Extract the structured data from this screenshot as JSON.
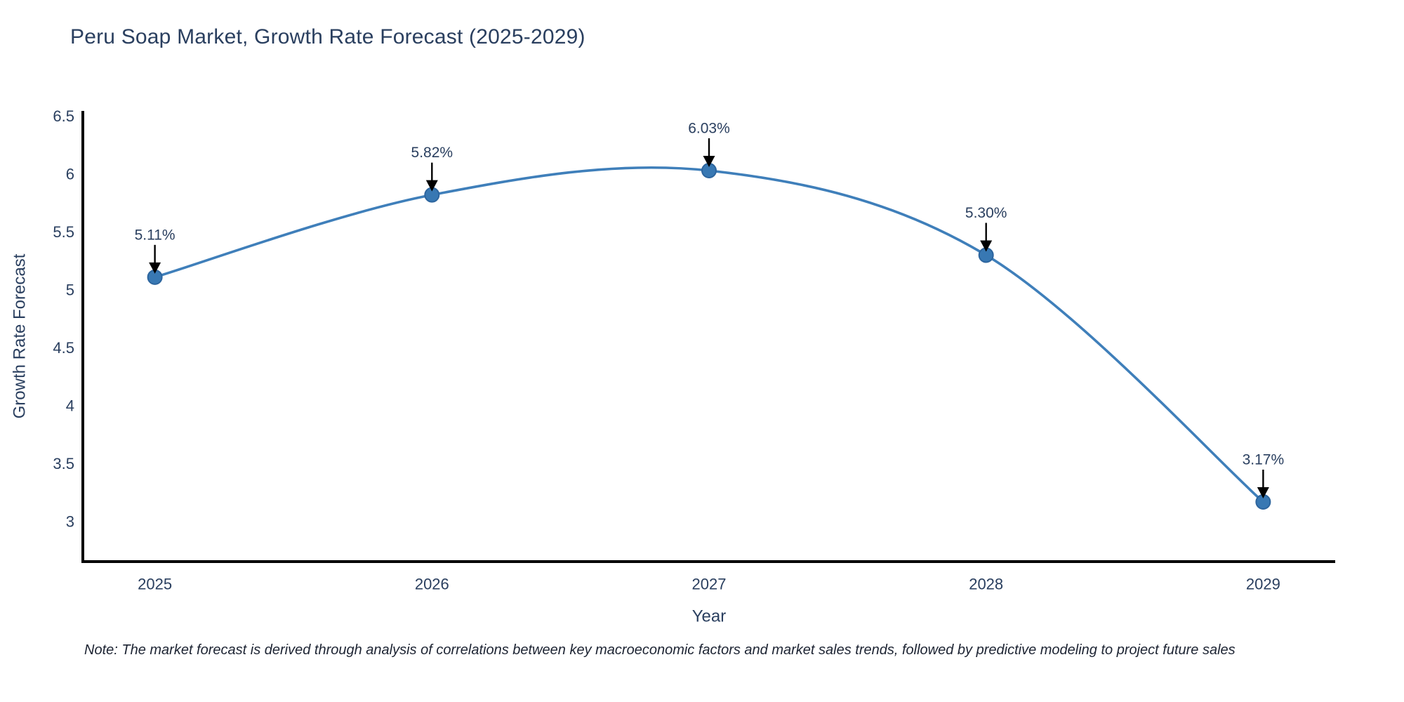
{
  "chart_data": {
    "type": "line",
    "line_shape": "spline",
    "title": "Peru Soap Market, Growth Rate Forecast (2025-2029)",
    "xlabel": "Year",
    "ylabel": "Growth Rate Forecast",
    "categories": [
      2025,
      2026,
      2027,
      2028,
      2029
    ],
    "values": [
      5.11,
      5.82,
      6.03,
      5.3,
      3.17
    ],
    "point_labels": [
      "5.11%",
      "5.82%",
      "6.03%",
      "5.30%",
      "3.17%"
    ],
    "yticks": [
      6.5,
      6,
      5.5,
      5,
      4.5,
      4,
      3.5,
      3
    ],
    "ytick_labels": [
      "6.5",
      "6",
      "5.5",
      "5",
      "4.5",
      "4",
      "3.5",
      "3"
    ],
    "ylim": [
      2.655,
      6.545
    ],
    "xlim": [
      2024.74,
      2029.26
    ],
    "grid": false,
    "legend": "none",
    "colors": {
      "line": "#3f7fba",
      "marker_fill": "#3878b3",
      "marker_edge": "#2d659e",
      "axis_line": "#000000",
      "title_text": "#2a3f5f",
      "axis_text": "#2a3f5f",
      "annotation_text": "#2a3f5f",
      "annotation_arrow": "#000000"
    }
  },
  "note": "Note: The market forecast is derived through analysis of correlations between key macroeconomic factors and market sales trends, followed by predictive modeling to project future sales"
}
